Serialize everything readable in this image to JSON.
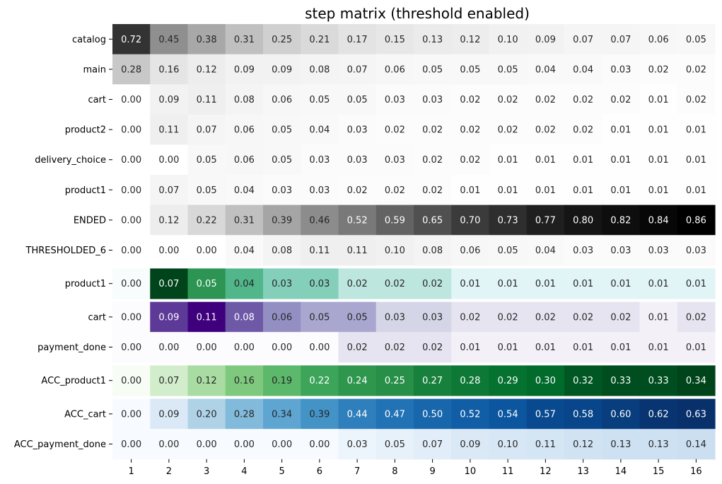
{
  "chart_data": {
    "type": "heatmap",
    "title": "step matrix (threshold enabled)",
    "xlabel": "",
    "ylabel": "",
    "columns": [
      "1",
      "2",
      "3",
      "4",
      "5",
      "6",
      "7",
      "8",
      "9",
      "10",
      "11",
      "12",
      "13",
      "14",
      "15",
      "16"
    ],
    "blocks": [
      {
        "colormap": "Greys",
        "vmin": 0,
        "vmax": 0.86,
        "rows": [
          {
            "label": "catalog",
            "values": [
              0.72,
              0.45,
              0.38,
              0.31,
              0.25,
              0.21,
              0.17,
              0.15,
              0.13,
              0.12,
              0.1,
              0.09,
              0.07,
              0.07,
              0.06,
              0.05
            ]
          },
          {
            "label": "main",
            "values": [
              0.28,
              0.16,
              0.12,
              0.09,
              0.09,
              0.08,
              0.07,
              0.06,
              0.05,
              0.05,
              0.05,
              0.04,
              0.04,
              0.03,
              0.02,
              0.02
            ]
          },
          {
            "label": "cart",
            "values": [
              0.0,
              0.09,
              0.11,
              0.08,
              0.06,
              0.05,
              0.05,
              0.03,
              0.03,
              0.02,
              0.02,
              0.02,
              0.02,
              0.02,
              0.01,
              0.02
            ]
          },
          {
            "label": "product2",
            "values": [
              0.0,
              0.11,
              0.07,
              0.06,
              0.05,
              0.04,
              0.03,
              0.02,
              0.02,
              0.02,
              0.02,
              0.02,
              0.02,
              0.01,
              0.01,
              0.01
            ]
          },
          {
            "label": "delivery_choice",
            "values": [
              0.0,
              0.0,
              0.05,
              0.06,
              0.05,
              0.03,
              0.03,
              0.03,
              0.02,
              0.02,
              0.01,
              0.01,
              0.01,
              0.01,
              0.01,
              0.01
            ]
          },
          {
            "label": "product1",
            "values": [
              0.0,
              0.07,
              0.05,
              0.04,
              0.03,
              0.03,
              0.02,
              0.02,
              0.02,
              0.01,
              0.01,
              0.01,
              0.01,
              0.01,
              0.01,
              0.01
            ]
          },
          {
            "label": "ENDED",
            "values": [
              0.0,
              0.12,
              0.22,
              0.31,
              0.39,
              0.46,
              0.52,
              0.59,
              0.65,
              0.7,
              0.73,
              0.77,
              0.8,
              0.82,
              0.84,
              0.86
            ]
          },
          {
            "label": "THRESHOLDED_6",
            "values": [
              0.0,
              0.0,
              0.0,
              0.04,
              0.08,
              0.11,
              0.11,
              0.1,
              0.08,
              0.06,
              0.05,
              0.04,
              0.03,
              0.03,
              0.03,
              0.03
            ]
          }
        ]
      },
      {
        "colormap": "BuGn",
        "vmin": 0,
        "vmax": 0.07,
        "rows": [
          {
            "label": "product1",
            "values": [
              0.0,
              0.07,
              0.05,
              0.04,
              0.03,
              0.03,
              0.02,
              0.02,
              0.02,
              0.01,
              0.01,
              0.01,
              0.01,
              0.01,
              0.01,
              0.01
            ]
          }
        ]
      },
      {
        "colormap": "Purples",
        "vmin": 0,
        "vmax": 0.11,
        "rows": [
          {
            "label": "cart",
            "values": [
              0.0,
              0.09,
              0.11,
              0.08,
              0.06,
              0.05,
              0.05,
              0.03,
              0.03,
              0.02,
              0.02,
              0.02,
              0.02,
              0.02,
              0.01,
              0.02
            ]
          },
          {
            "label": "payment_done",
            "values": [
              0.0,
              0.0,
              0.0,
              0.0,
              0.0,
              0.0,
              0.02,
              0.02,
              0.02,
              0.01,
              0.01,
              0.01,
              0.01,
              0.01,
              0.01,
              0.01
            ]
          }
        ]
      },
      {
        "colormap": "Greens",
        "vmin": 0,
        "vmax": 0.34,
        "rows": [
          {
            "label": "ACC_product1",
            "values": [
              0.0,
              0.07,
              0.12,
              0.16,
              0.19,
              0.22,
              0.24,
              0.25,
              0.27,
              0.28,
              0.29,
              0.3,
              0.32,
              0.33,
              0.33,
              0.34
            ]
          }
        ]
      },
      {
        "colormap": "Blues",
        "vmin": 0,
        "vmax": 0.63,
        "rows": [
          {
            "label": "ACC_cart",
            "values": [
              0.0,
              0.09,
              0.2,
              0.28,
              0.34,
              0.39,
              0.44,
              0.47,
              0.5,
              0.52,
              0.54,
              0.57,
              0.58,
              0.6,
              0.62,
              0.63
            ]
          },
          {
            "label": "ACC_payment_done",
            "values": [
              0.0,
              0.0,
              0.0,
              0.0,
              0.0,
              0.0,
              0.03,
              0.05,
              0.07,
              0.09,
              0.1,
              0.11,
              0.12,
              0.13,
              0.13,
              0.14
            ]
          }
        ]
      }
    ],
    "colorbar": false,
    "grid": false
  }
}
